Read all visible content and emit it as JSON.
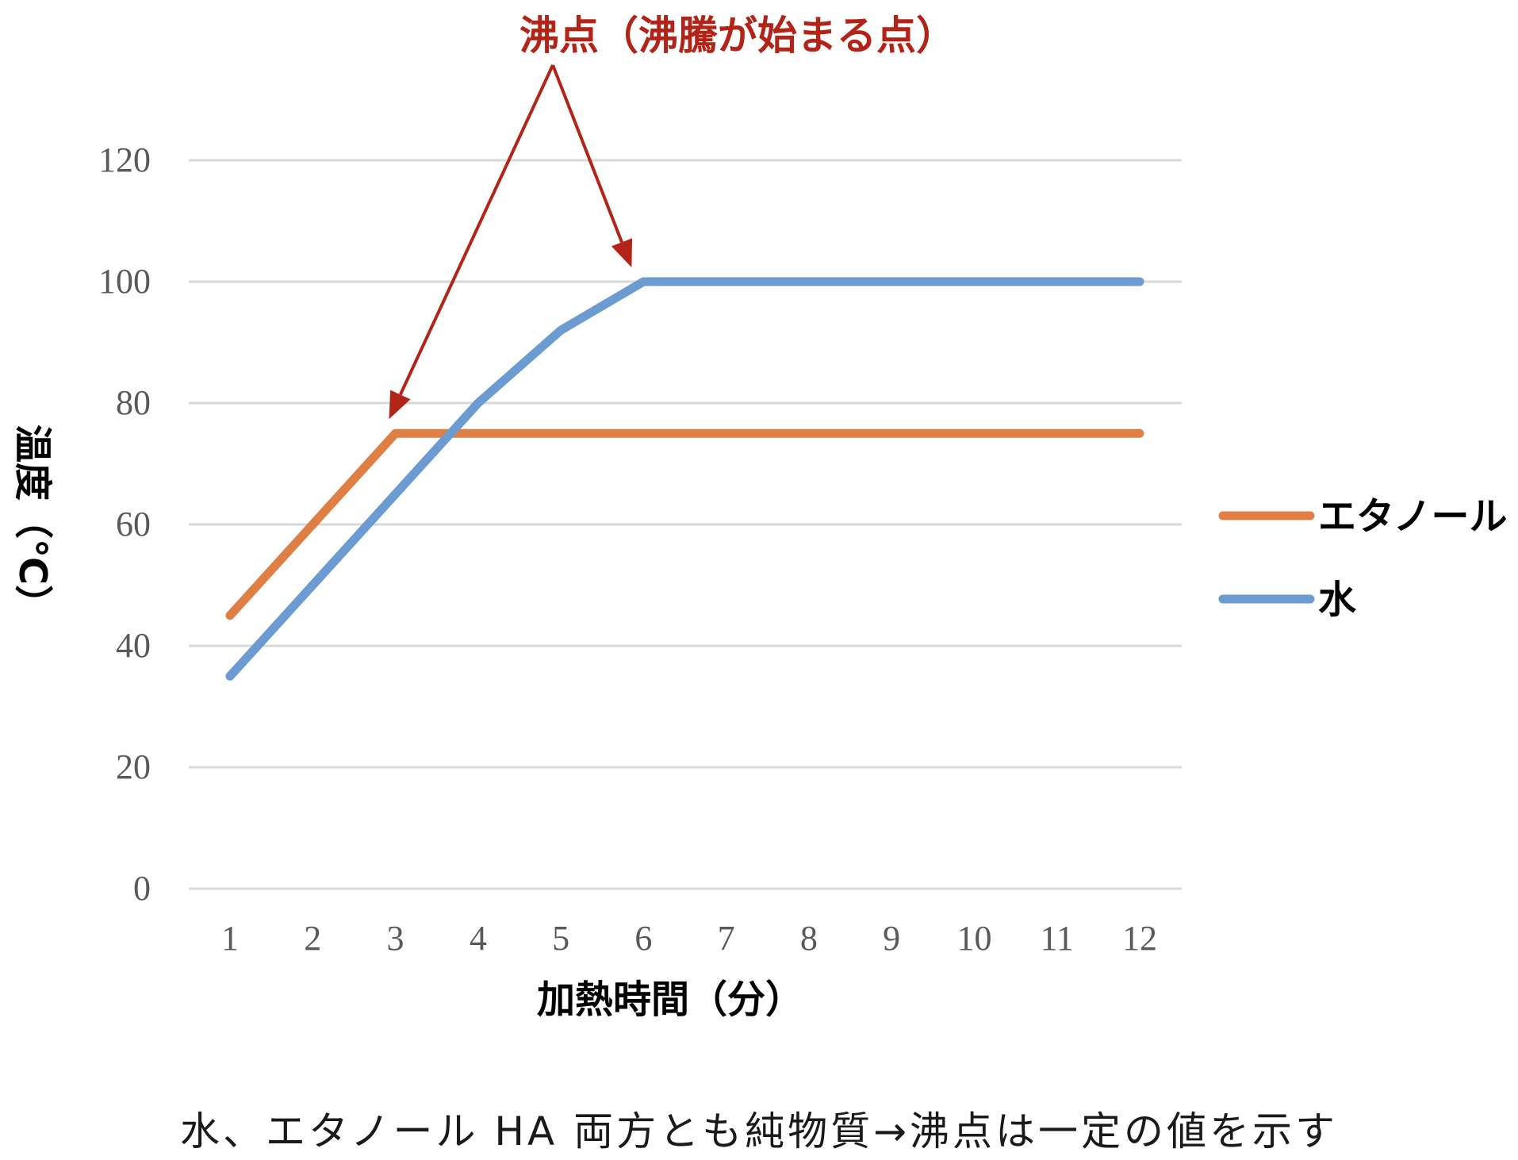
{
  "chart_data": {
    "type": "line",
    "categories": [
      "1",
      "2",
      "3",
      "4",
      "5",
      "6",
      "7",
      "8",
      "9",
      "10",
      "11",
      "12"
    ],
    "series": [
      {
        "name": "エタノール",
        "color": "#E07F45",
        "values": [
          45,
          60,
          75,
          75,
          75,
          75,
          75,
          75,
          75,
          75,
          75,
          75
        ]
      },
      {
        "name": "水",
        "color": "#6B9BD1",
        "values": [
          35,
          50,
          65,
          80,
          92,
          100,
          100,
          100,
          100,
          100,
          100,
          100
        ]
      }
    ],
    "ylim": [
      0,
      120
    ],
    "yticks": [
      0,
      20,
      40,
      60,
      80,
      100,
      120
    ],
    "xlabel": "加熱時間（分）",
    "ylabel": "温度（℃）",
    "grid": true,
    "legend": "right",
    "annotation": {
      "text": "沸点（沸騰が始まる点）",
      "color": "#B22418",
      "targets": [
        {
          "series": "エタノール",
          "category": "3",
          "value": 75
        },
        {
          "series": "水",
          "category": "6",
          "value": 100
        }
      ]
    }
  },
  "caption": "水、エタノール HA 両方とも純物質→沸点は一定の値を示す"
}
